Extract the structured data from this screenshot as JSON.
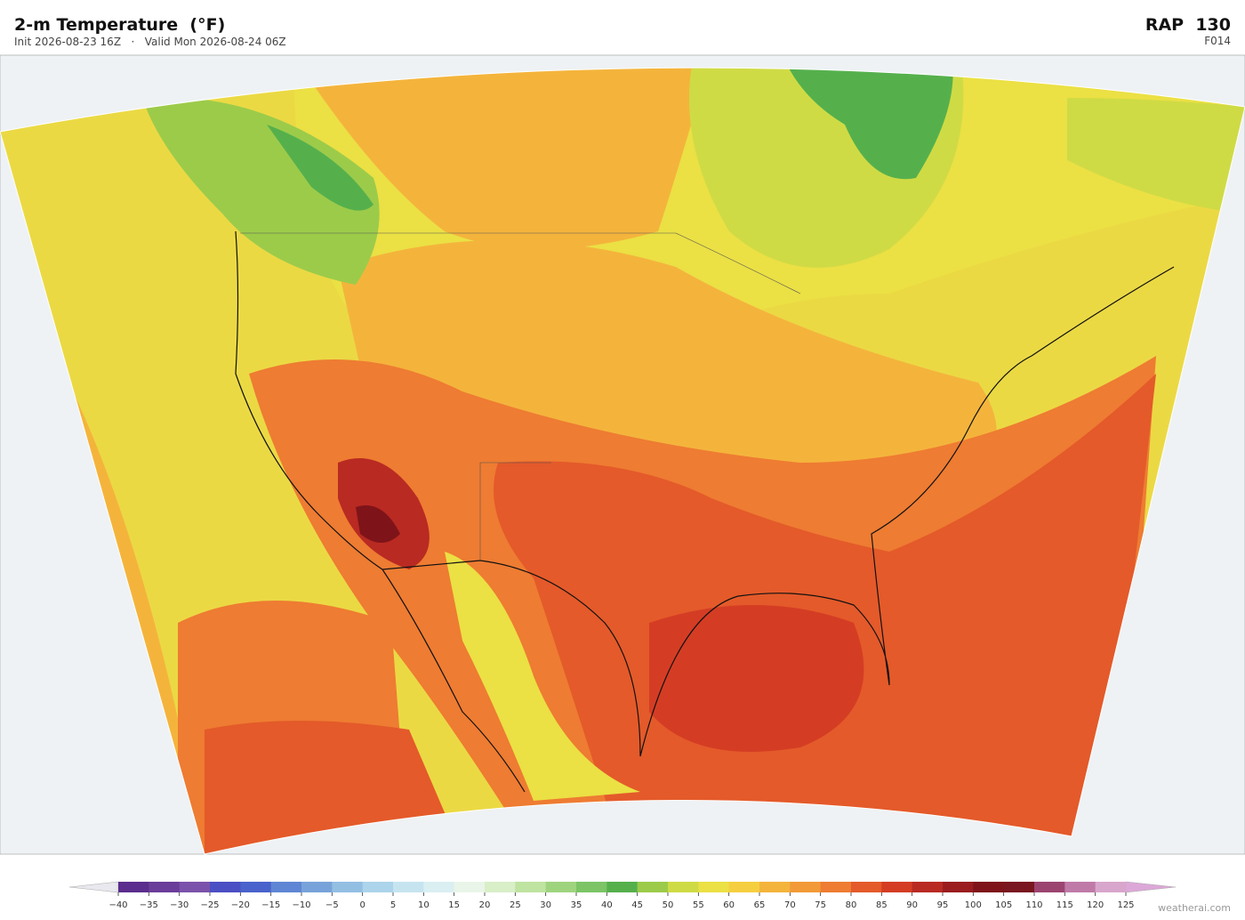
{
  "header": {
    "title": "2-m Temperature  (°F)",
    "subtitle": "Init 2026-08-23 16Z   ·   Valid Mon 2026-08-24 06Z",
    "model": "RAP  130",
    "forecast_hour": "F014"
  },
  "colorbar": {
    "ticks": [
      {
        "value": -40,
        "label": "−40"
      },
      {
        "value": -35,
        "label": "−35"
      },
      {
        "value": -30,
        "label": "−30"
      },
      {
        "value": -25,
        "label": "−25"
      },
      {
        "value": -20,
        "label": "−20"
      },
      {
        "value": -15,
        "label": "−15"
      },
      {
        "value": -10,
        "label": "−10"
      },
      {
        "value": -5,
        "label": "−5"
      },
      0,
      5,
      10,
      15,
      20,
      25,
      30,
      35,
      40,
      45,
      50,
      55,
      60,
      65,
      70,
      75,
      80,
      85,
      90,
      95,
      100,
      105,
      110,
      115,
      120,
      125
    ],
    "colors": [
      "#5b2d8e",
      "#6a3d9a",
      "#7b52ab",
      "#4b4fc4",
      "#4a62cc",
      "#5f86d4",
      "#78a3da",
      "#93bfe3",
      "#acd4ea",
      "#c6e4f0",
      "#daeff2",
      "#e9f5e8",
      "#d9efc8",
      "#bfe3a0",
      "#9fd47f",
      "#7cc466",
      "#55b04c",
      "#9ccb4a",
      "#cfdb45",
      "#ebe044",
      "#f5cf40",
      "#f4b43c",
      "#f29a38",
      "#ee7c32",
      "#e45a2a",
      "#d43d24",
      "#b92a22",
      "#9a1c1f",
      "#7e1419",
      "#7a1620",
      "#9c4470",
      "#c07aa8",
      "#d8a6cc"
    ],
    "under_color": "#e8e8ee",
    "over_color": "#dca8d8"
  },
  "footer": {
    "credit": "weatherai.com"
  }
}
